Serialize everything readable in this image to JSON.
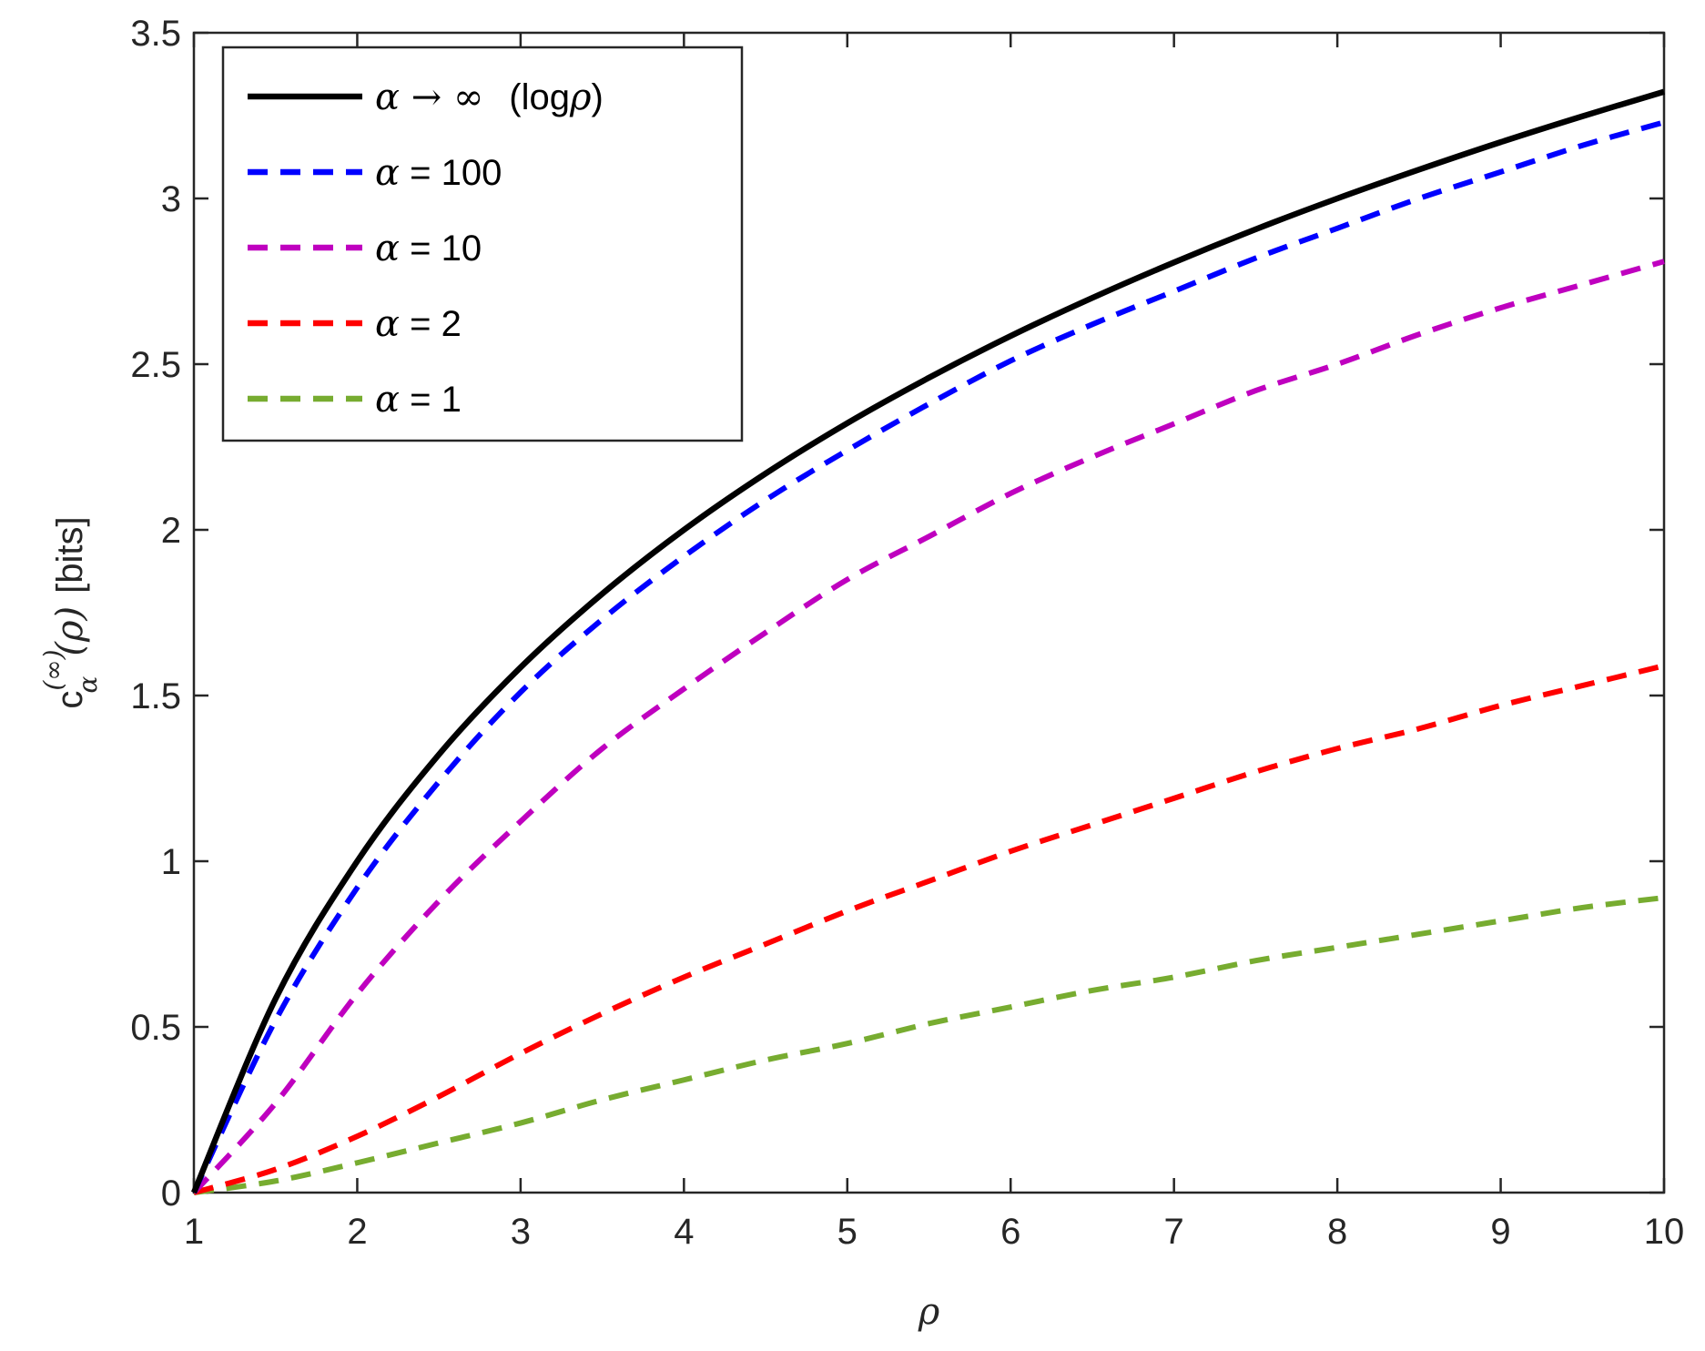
{
  "chart_data": {
    "type": "line",
    "xlabel": "ρ",
    "ylabel": {
      "symbol": "c",
      "superscript": "(∞)",
      "subscript": "α",
      "argument": "(ρ)",
      "unit": "[bits]"
    },
    "xlim": [
      1,
      10
    ],
    "ylim": [
      0,
      3.5
    ],
    "xticks": [
      1,
      2,
      3,
      4,
      5,
      6,
      7,
      8,
      9,
      10
    ],
    "yticks": [
      0,
      0.5,
      1,
      1.5,
      2,
      2.5,
      3,
      3.5
    ],
    "xtick_labels": [
      "1",
      "2",
      "3",
      "4",
      "5",
      "6",
      "7",
      "8",
      "9",
      "10"
    ],
    "ytick_labels": [
      "0",
      "0.5",
      "1",
      "1.5",
      "2",
      "2.5",
      "3",
      "3.5"
    ],
    "grid": false,
    "legend_position": "top-left",
    "x": [
      1,
      1.5,
      2,
      2.5,
      3,
      3.5,
      4,
      4.5,
      5,
      5.5,
      6,
      6.5,
      7,
      7.5,
      8,
      8.5,
      9,
      9.5,
      10
    ],
    "series": [
      {
        "name": "α → ∞  (logρ)",
        "legend_main": "α → ∞",
        "legend_suffix_prefix": "(log",
        "legend_suffix_greek": "ρ",
        "legend_suffix_end": ")",
        "color": "#000000",
        "dashed": false,
        "values": [
          0,
          0.585,
          1.0,
          1.322,
          1.585,
          1.807,
          2.0,
          2.17,
          2.322,
          2.459,
          2.585,
          2.7,
          2.807,
          2.907,
          3.0,
          3.087,
          3.17,
          3.248,
          3.322
        ]
      },
      {
        "name": "α = 100",
        "legend_main": "α",
        "legend_rest": " = 100",
        "color": "#0000ff",
        "dashed": true,
        "values": [
          0,
          0.52,
          0.92,
          1.24,
          1.51,
          1.73,
          1.92,
          2.09,
          2.24,
          2.38,
          2.51,
          2.62,
          2.72,
          2.82,
          2.91,
          3.0,
          3.08,
          3.16,
          3.23
        ]
      },
      {
        "name": "α = 10",
        "legend_main": "α",
        "legend_rest": " = 10",
        "color": "#bf00bf",
        "dashed": true,
        "values": [
          0,
          0.27,
          0.6,
          0.88,
          1.12,
          1.34,
          1.52,
          1.69,
          1.85,
          1.98,
          2.11,
          2.22,
          2.32,
          2.42,
          2.5,
          2.59,
          2.67,
          2.74,
          2.81
        ]
      },
      {
        "name": "α = 2",
        "legend_main": "α",
        "legend_rest": " = 2",
        "color": "#ff0000",
        "dashed": true,
        "values": [
          0,
          0.07,
          0.17,
          0.29,
          0.42,
          0.54,
          0.65,
          0.75,
          0.85,
          0.94,
          1.03,
          1.11,
          1.19,
          1.27,
          1.34,
          1.4,
          1.47,
          1.53,
          1.59
        ]
      },
      {
        "name": "α = 1",
        "legend_main": "α",
        "legend_rest": " = 1",
        "color": "#77ac30",
        "dashed": true,
        "values": [
          0,
          0.035,
          0.09,
          0.15,
          0.21,
          0.28,
          0.34,
          0.4,
          0.45,
          0.51,
          0.56,
          0.61,
          0.65,
          0.7,
          0.74,
          0.78,
          0.82,
          0.86,
          0.89
        ]
      }
    ]
  }
}
